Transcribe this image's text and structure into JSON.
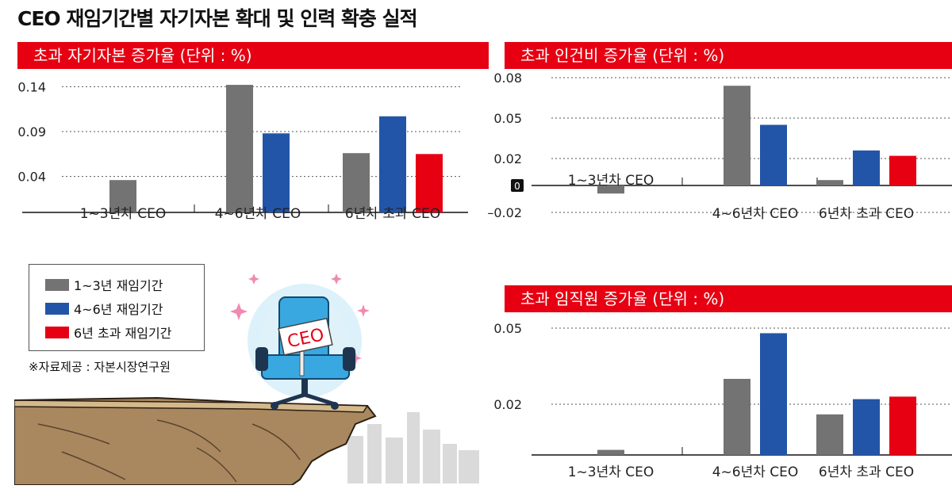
{
  "title": "CEO 재임기간별 자기자본 확대 및 인력 확충 실적",
  "colors": {
    "gray": "#737373",
    "blue": "#2255a8",
    "red": "#e60012",
    "header": "#e60012"
  },
  "legend": [
    {
      "label": "1~3년 재임기간",
      "color": "#737373"
    },
    {
      "label": "4~6년 재임기간",
      "color": "#2255a8"
    },
    {
      "label": "6년 초과 재임기간",
      "color": "#e60012"
    }
  ],
  "source": "※자료제공 : 자본시장연구원",
  "illustration": {
    "chair_label": "CEO"
  },
  "panels": [
    {
      "header": "초과 자기자본 증가율 (단위 : %)"
    },
    {
      "header": "초과 인건비 증가율  (단위 : %)"
    },
    {
      "header": "초과 임직원 증가율  (단위 : %)"
    }
  ],
  "chart_data": [
    {
      "type": "bar",
      "title": "초과 자기자본 증가율 (단위 : %)",
      "categories": [
        "1~3년차 CEO",
        "4~6년차 CEO",
        "6년차 초과 CEO"
      ],
      "series": [
        {
          "name": "1~3년 재임기간",
          "color": "#737373",
          "values": [
            0.036,
            0.142,
            0.066
          ]
        },
        {
          "name": "4~6년 재임기간",
          "color": "#2255a8",
          "values": [
            null,
            0.088,
            0.107
          ]
        },
        {
          "name": "6년 초과 재임기간",
          "color": "#e60012",
          "values": [
            null,
            null,
            0.065
          ]
        }
      ],
      "yticks": [
        "0.14",
        "0.09",
        "0.04"
      ],
      "ytick_values": [
        0.14,
        0.09,
        0.04
      ],
      "ylim": [
        0,
        0.15
      ],
      "zero_label": "",
      "grid": true
    },
    {
      "type": "bar",
      "title": "초과 인건비 증가율  (단위 : %)",
      "categories": [
        "1~3년차 CEO",
        "4~6년차 CEO",
        "6년차 초과 CEO"
      ],
      "series": [
        {
          "name": "1~3년 재임기간",
          "color": "#737373",
          "values": [
            -0.006,
            0.074,
            0.004
          ]
        },
        {
          "name": "4~6년 재임기간",
          "color": "#2255a8",
          "values": [
            null,
            0.045,
            0.026
          ]
        },
        {
          "name": "6년 초과 재임기간",
          "color": "#e60012",
          "values": [
            null,
            null,
            0.022
          ]
        }
      ],
      "yticks": [
        "0.08",
        "0.05",
        "0.02",
        "–0.02"
      ],
      "ytick_values": [
        0.08,
        0.05,
        0.02,
        -0.02
      ],
      "ylim": [
        -0.02,
        0.08
      ],
      "zero_label": "0",
      "grid": true
    },
    {
      "type": "bar",
      "title": "초과 임직원 증가율  (단위 : %)",
      "categories": [
        "1~3년차 CEO",
        "4~6년차 CEO",
        "6년차 초과 CEO"
      ],
      "series": [
        {
          "name": "1~3년 재임기간",
          "color": "#737373",
          "values": [
            0.002,
            0.03,
            0.016
          ]
        },
        {
          "name": "4~6년 재임기간",
          "color": "#2255a8",
          "values": [
            null,
            0.048,
            0.022
          ]
        },
        {
          "name": "6년 초과 재임기간",
          "color": "#e60012",
          "values": [
            null,
            null,
            0.023
          ]
        }
      ],
      "yticks": [
        "0.05",
        "0.02"
      ],
      "ytick_values": [
        0.05,
        0.02
      ],
      "ylim": [
        0,
        0.05
      ],
      "zero_label": "",
      "grid": true
    }
  ]
}
